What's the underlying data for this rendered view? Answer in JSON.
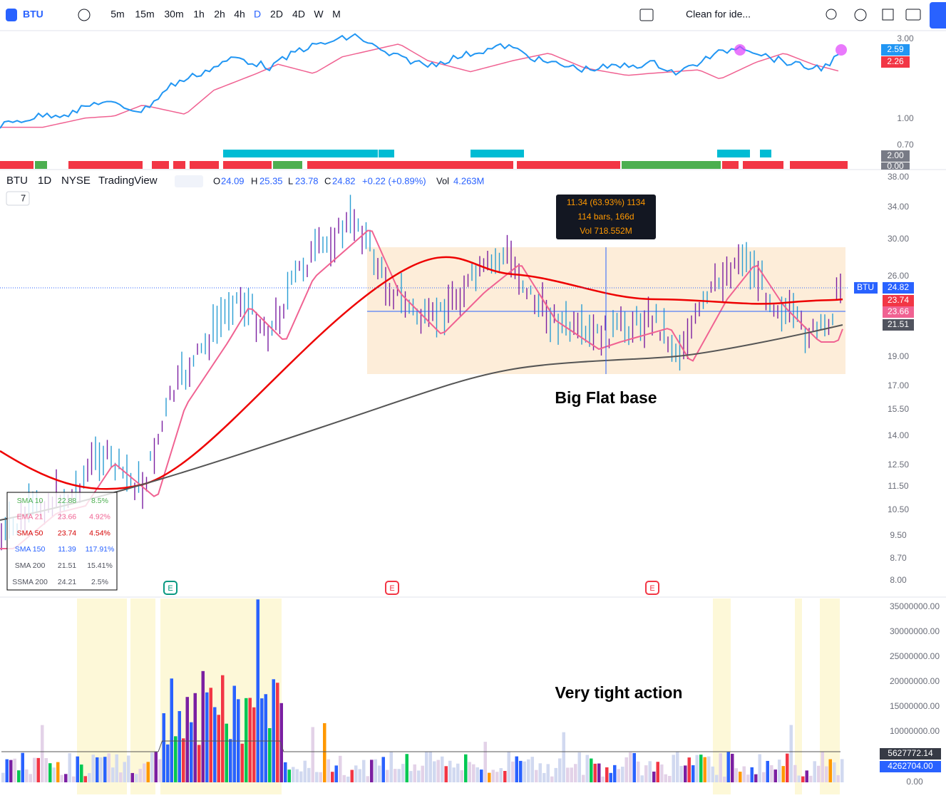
{
  "toolbar": {
    "symbol": "BTU",
    "intervals": [
      "5m",
      "15m",
      "30m",
      "1h",
      "2h",
      "4h",
      "D",
      "2D",
      "4D",
      "W",
      "M"
    ],
    "layout_name": "Clean for ide..."
  },
  "indicator_pane": {
    "axis": [
      "3.00",
      "1.00",
      "0.70"
    ],
    "badges": [
      "2.59",
      "2.26"
    ]
  },
  "strip_pane": {
    "badges": [
      "2.00",
      "0.00"
    ]
  },
  "main_pane": {
    "legend": {
      "symbol": "BTU",
      "interval": "1D",
      "exchange": "NYSE",
      "source": "TradingView",
      "open_label": "O",
      "open": "24.09",
      "high_label": "H",
      "high": "25.35",
      "low_label": "L",
      "low": "23.78",
      "close_label": "C",
      "close": "24.82",
      "change": "+0.22 (+0.89%)",
      "volume_label": "Vol",
      "volume": "4.263M"
    },
    "collapsed_count": "7",
    "axis": [
      "38.00",
      "34.00",
      "30.00",
      "26.00",
      "19.00",
      "17.00",
      "15.50",
      "14.00",
      "12.50",
      "11.50",
      "10.50",
      "9.50",
      "8.70",
      "8.00"
    ],
    "price_badges": {
      "symbol": "BTU",
      "close": "24.82",
      "sma50": "23.74",
      "ema21": "23.66",
      "sma200": "21.51"
    },
    "measure": [
      "11.34 (63.93%) 1134",
      "114 bars, 166d",
      "Vol 718.552M"
    ],
    "annotation": "Big Flat base",
    "earnings": [
      "E",
      "E",
      "E"
    ],
    "ma_table": [
      [
        "SMA 10",
        "22.88",
        "8.5%"
      ],
      [
        "EMA 21",
        "23.66",
        "4.92%"
      ],
      [
        "SMA 50",
        "23.74",
        "4.54%"
      ],
      [
        "SMA 150",
        "11.39",
        "117.91%"
      ],
      [
        "SMA 200",
        "21.51",
        "15.41%"
      ],
      [
        "SSMA 200",
        "24.21",
        "2.5%"
      ]
    ]
  },
  "volume_pane": {
    "axis": [
      "35000000.00",
      "30000000.00",
      "25000000.00",
      "20000000.00",
      "15000000.00",
      "10000000.00",
      "0.00"
    ],
    "badges": [
      "5627772.14",
      "4262704.00"
    ],
    "annotation": "Very tight action"
  }
}
